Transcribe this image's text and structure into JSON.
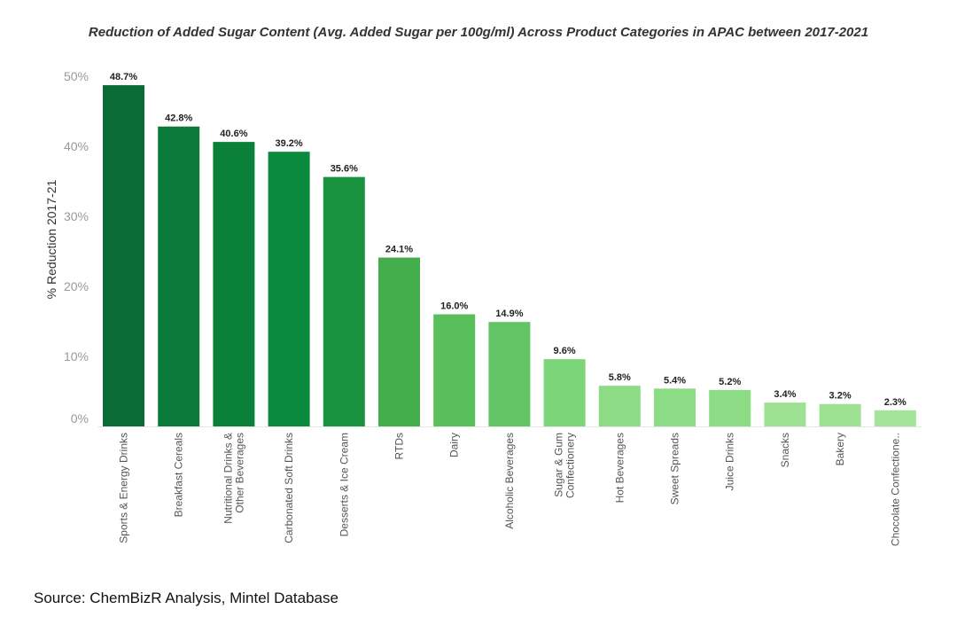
{
  "chart_data": {
    "type": "bar",
    "title": "Reduction of Added Sugar Content (Avg. Added Sugar per 100g/ml) Across Product Categories in APAC between 2017-2021",
    "ylabel": "% Reduction 2017-21",
    "xlabel": "",
    "ylim": [
      0,
      52
    ],
    "yticks": [
      0,
      10,
      20,
      30,
      40,
      50
    ],
    "ytick_labels": [
      "0%",
      "10%",
      "20%",
      "30%",
      "40%",
      "50%"
    ],
    "grid": false,
    "categories": [
      [
        "Sports & Energy Drinks"
      ],
      [
        "Breakfast Cereals"
      ],
      [
        "Nutritional Drinks &",
        "Other Beverages"
      ],
      [
        "Carbonated Soft Drinks"
      ],
      [
        "Desserts & Ice Cream"
      ],
      [
        "RTDs"
      ],
      [
        "Dairy"
      ],
      [
        "Alcoholic Beverages"
      ],
      [
        "Sugar & Gum",
        "Confectionery"
      ],
      [
        "Hot Beverages"
      ],
      [
        "Sweet Spreads"
      ],
      [
        "Juice Drinks"
      ],
      [
        "Snacks"
      ],
      [
        "Bakery"
      ],
      [
        "Chocolate Confectione.."
      ]
    ],
    "values": [
      48.7,
      42.8,
      40.6,
      39.2,
      35.6,
      24.1,
      16.0,
      14.9,
      9.6,
      5.8,
      5.4,
      5.2,
      3.4,
      3.2,
      2.3
    ],
    "value_labels": [
      "48.7%",
      "42.8%",
      "40.6%",
      "39.2%",
      "35.6%",
      "24.1%",
      "16.0%",
      "14.9%",
      "9.6%",
      "5.8%",
      "5.4%",
      "5.2%",
      "3.4%",
      "3.2%",
      "2.3%"
    ],
    "colors": [
      "#0a6b37",
      "#0c7a3a",
      "#0b8038",
      "#0a8a3c",
      "#1a923f",
      "#44ad4c",
      "#58bf5b",
      "#62c464",
      "#7cd679",
      "#8cdc85",
      "#8cdc85",
      "#8cdc85",
      "#9ee193",
      "#9ee193",
      "#a3e39a"
    ]
  },
  "source": "Source: ChemBizR Analysis, Mintel Database"
}
